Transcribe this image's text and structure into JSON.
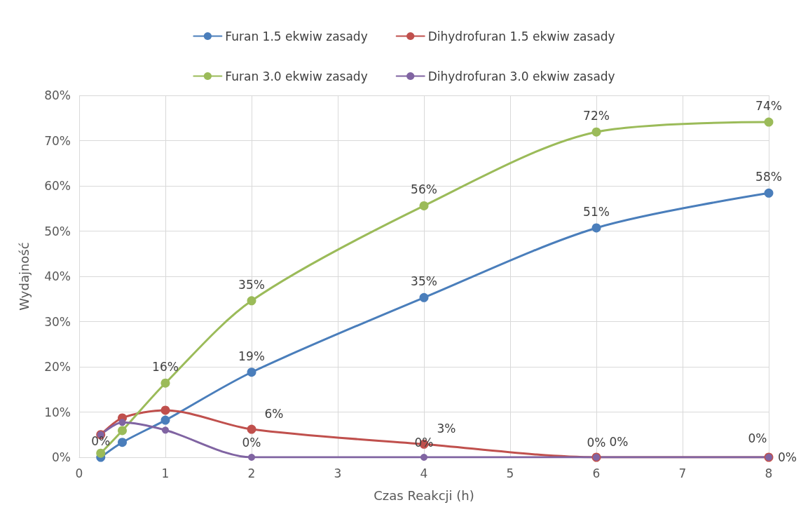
{
  "chart_data": {
    "type": "line",
    "xlabel": "Czas Reakcji (h)",
    "ylabel": "Wydajność",
    "x": [
      0.25,
      0.5,
      1,
      2,
      4,
      6,
      8
    ],
    "xlim": [
      0,
      8
    ],
    "xticks": [
      0,
      1,
      2,
      3,
      4,
      5,
      6,
      7,
      8
    ],
    "ylim": [
      0,
      80
    ],
    "yticks": [
      {
        "value": 0,
        "label": "0%"
      },
      {
        "value": 10,
        "label": "10%"
      },
      {
        "value": 20,
        "label": "20%"
      },
      {
        "value": 30,
        "label": "30%"
      },
      {
        "value": 40,
        "label": "40%"
      },
      {
        "value": 50,
        "label": "50%"
      },
      {
        "value": 60,
        "label": "60%"
      },
      {
        "value": 70,
        "label": "70%"
      },
      {
        "value": 80,
        "label": "80%"
      }
    ],
    "grid": true,
    "legend": "top",
    "marker": "circle",
    "line_style": "solid",
    "series": [
      {
        "name": "Furan 1.5 ekwiw zasady",
        "color": "#4a7ebb",
        "values": [
          0,
          3.3,
          8.2,
          18.8,
          35.3,
          50.7,
          58.4
        ],
        "value_labels": [
          "0%",
          null,
          null,
          "19%",
          "35%",
          "51%",
          "58%"
        ]
      },
      {
        "name": "Dihydrofuran 1.5 ekwiw zasady",
        "color": "#c0504d",
        "values": [
          5.0,
          8.7,
          10.4,
          6.2,
          2.9,
          0,
          0
        ],
        "value_labels": [
          null,
          null,
          null,
          "6%",
          "3%",
          "0%",
          "0%"
        ]
      },
      {
        "name": "Furan 3.0 ekwiw zasady",
        "color": "#9bbb59",
        "values": [
          0.9,
          5.9,
          16.4,
          34.6,
          55.6,
          71.9,
          74.1
        ],
        "value_labels": [
          null,
          null,
          "16%",
          "35%",
          "56%",
          "72%",
          "74%"
        ]
      },
      {
        "name": "Dihydrofuran 3.0 ekwiw zasady",
        "color": "#8064a2",
        "values": [
          5.0,
          7.7,
          6.0,
          0,
          0,
          0,
          0
        ],
        "value_labels": [
          null,
          null,
          null,
          "0%",
          "0%",
          "0%",
          "0%"
        ]
      }
    ]
  }
}
